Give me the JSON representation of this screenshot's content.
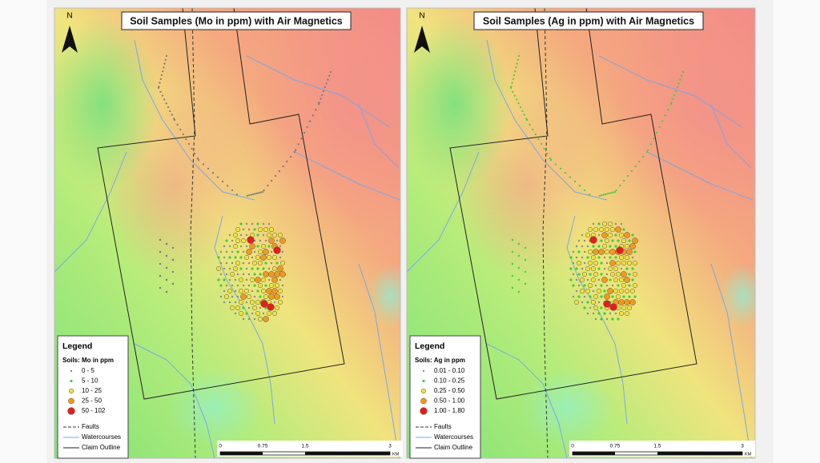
{
  "maps": [
    {
      "title": "Soil Samples (Mo in ppm) with Air Magnetics",
      "north": "N",
      "legend": {
        "title": "Legend",
        "group": "Soils: Mo in ppm",
        "classes": [
          "0 - 5",
          "5 - 10",
          "10 - 25",
          "25 - 50",
          "50 - 102"
        ],
        "lines": [
          "Faults",
          "Watercourses",
          "Claim Outline"
        ]
      },
      "scale": {
        "ticks": [
          "0",
          "0.75",
          "1.5",
          "3"
        ],
        "unit": "KM"
      }
    },
    {
      "title": "Soil Samples (Ag in ppm) with Air Magnetics",
      "north": "N",
      "legend": {
        "title": "Legend",
        "group": "Soils: Ag in ppm",
        "classes": [
          "0.01 - 0.10",
          "0.10 - 0.25",
          "0.25 - 0.50",
          "0.50 - 1.00",
          "1.00 - 1.80"
        ],
        "lines": [
          "Faults",
          "Watercourses",
          "Claim Outline"
        ]
      },
      "scale": {
        "ticks": [
          "0",
          "0.75",
          "1.5",
          "3"
        ],
        "unit": "KM"
      }
    }
  ]
}
